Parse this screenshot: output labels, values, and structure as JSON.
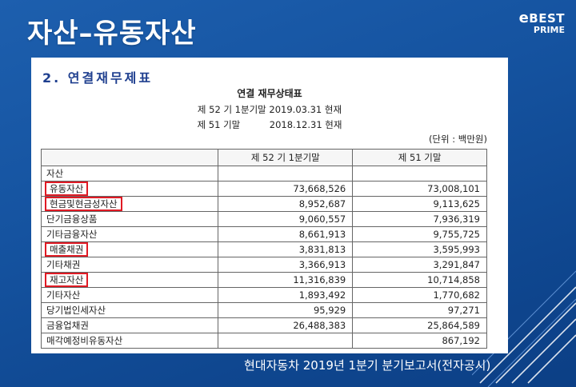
{
  "slide": {
    "title": "자산–유동자산",
    "brand_main_e": "e",
    "brand_main": "BEST",
    "brand_sub": "PRIME",
    "caption": "현대자동차 2019년 1분기 분기보고서(전자공시)"
  },
  "doc": {
    "section_heading": "2. 연결재무제표",
    "title": "연결 재무상태표",
    "period_current": "제 52 기 1분기말 2019.03.31 현재",
    "period_prior": "제 51 기말          2018.12.31 현재",
    "unit": "(단위 : 백만원)",
    "columns": [
      "",
      "제 52 기 1분기말",
      "제 51 기말"
    ],
    "rows": [
      {
        "label": "자산",
        "level": 0,
        "cur": "",
        "prev": "",
        "highlight": false
      },
      {
        "label": "유동자산",
        "level": 1,
        "cur": "73,668,526",
        "prev": "73,008,101",
        "highlight": true
      },
      {
        "label": "현금및현금성자산",
        "level": 2,
        "cur": "8,952,687",
        "prev": "9,113,625",
        "highlight": true
      },
      {
        "label": "단기금융상품",
        "level": 2,
        "cur": "9,060,557",
        "prev": "7,936,319",
        "highlight": false
      },
      {
        "label": "기타금융자산",
        "level": 2,
        "cur": "8,661,913",
        "prev": "9,755,725",
        "highlight": false
      },
      {
        "label": "매출채권",
        "level": 2,
        "cur": "3,831,813",
        "prev": "3,595,993",
        "highlight": true
      },
      {
        "label": "기타채권",
        "level": 2,
        "cur": "3,366,913",
        "prev": "3,291,847",
        "highlight": false
      },
      {
        "label": "재고자산",
        "level": 2,
        "cur": "11,316,839",
        "prev": "10,714,858",
        "highlight": true
      },
      {
        "label": "기타자산",
        "level": 2,
        "cur": "1,893,492",
        "prev": "1,770,682",
        "highlight": false
      },
      {
        "label": "당기법인세자산",
        "level": 2,
        "cur": "95,929",
        "prev": "97,271",
        "highlight": false
      },
      {
        "label": "금융업채권",
        "level": 2,
        "cur": "26,488,383",
        "prev": "25,864,589",
        "highlight": false
      },
      {
        "label": "매각예정비유동자산",
        "level": 2,
        "cur": "",
        "prev": "867,192",
        "highlight": false
      }
    ]
  },
  "colors": {
    "background": "#1553a0",
    "highlight_box": "#e01a24",
    "heading_text": "#1f3f8f"
  }
}
